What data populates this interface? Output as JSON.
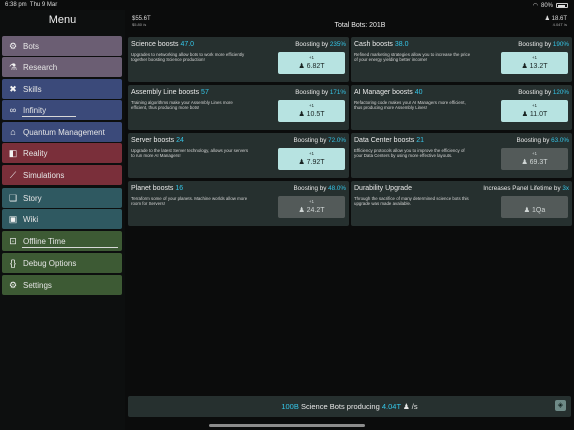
{
  "status": {
    "time": "6:38 pm",
    "date": "Thu 9 Mar",
    "battery": "80%"
  },
  "menu": {
    "title": "Menu",
    "items": [
      {
        "label": "Bots",
        "icon": "robot-icon",
        "glyph": "⚙",
        "color": "#6b5e73"
      },
      {
        "label": "Research",
        "icon": "flask-icon",
        "glyph": "⚗",
        "color": "#6b5e73"
      },
      {
        "label": "Skills",
        "icon": "skills-icon",
        "glyph": "✖",
        "color": "#3b4a7a"
      },
      {
        "label": "Infinity",
        "icon": "infinity-icon",
        "glyph": "∞",
        "color": "#3b4a7a"
      },
      {
        "label": "Quantum Management",
        "icon": "bank-icon",
        "glyph": "⌂",
        "color": "#3b4a7a"
      },
      {
        "label": "Reality",
        "icon": "reality-icon",
        "glyph": "◧",
        "color": "#7a2f3a"
      },
      {
        "label": "Simulations",
        "icon": "graph-icon",
        "glyph": "⟋",
        "color": "#7a2f3a"
      },
      {
        "label": "Story",
        "icon": "book-icon",
        "glyph": "❑",
        "color": "#2f5961"
      },
      {
        "label": "Wiki",
        "icon": "wiki-icon",
        "glyph": "▣",
        "color": "#2f5961"
      },
      {
        "label": "Offline Time",
        "icon": "offline-icon",
        "glyph": "⊡",
        "color": "#3d5a34"
      },
      {
        "label": "Debug Options",
        "icon": "debug-icon",
        "glyph": "{}",
        "color": "#3d5a34"
      },
      {
        "label": "Settings",
        "icon": "gear-icon",
        "glyph": "⚙",
        "color": "#3d5a34"
      }
    ]
  },
  "header": {
    "left_value": "$55.6T",
    "left_sub": "$5.80 /s",
    "total_bots": "Total Bots: 201B",
    "right_value": "♟ 18.6T",
    "right_sub": "4.04T /s"
  },
  "cards": [
    {
      "name": "Science boosts",
      "level": "47.0",
      "boost_label": "Boosting by",
      "boost": "235%",
      "desc": "Upgrades to networking allow bots to work more efficiently together boosting Science production!",
      "buy_small": "+1",
      "cost": "♟ 6.82T",
      "enabled": true
    },
    {
      "name": "Cash boosts",
      "level": "38.0",
      "boost_label": "Boosting by",
      "boost": "190%",
      "desc": "Refined marketing strategies allow you to increase the price of your energy yielding better income!",
      "buy_small": "+1",
      "cost": "♟ 13.2T",
      "enabled": true
    },
    {
      "name": "Assembly Line boosts",
      "level": "57",
      "boost_label": "Boosting by",
      "boost": "171%",
      "desc": "Training algorithms make your Assembly Lines more efficient, thus producing more bots!",
      "buy_small": "+1",
      "cost": "♟ 10.5T",
      "enabled": true
    },
    {
      "name": "AI Manager boosts",
      "level": "40",
      "boost_label": "Boosting by",
      "boost": "120%",
      "desc": "Refactoring code makes your AI Managers more efficient, thus producing more Assembly Lines!",
      "buy_small": "+1",
      "cost": "♟ 11.0T",
      "enabled": true
    },
    {
      "name": "Server boosts",
      "level": "24",
      "boost_label": "Boosting by",
      "boost": "72.0%",
      "desc": "Upgrade to the latest Server technology, allows your servers to run more AI Managers!",
      "buy_small": "+1",
      "cost": "♟ 7.92T",
      "enabled": true
    },
    {
      "name": "Data Center boosts",
      "level": "21",
      "boost_label": "Boosting by",
      "boost": "63.0%",
      "desc": "Efficiency protocols allow you to improve the efficiency of your Data Centers by using more effective layouts.",
      "buy_small": "+1",
      "cost": "♟ 69.3T",
      "enabled": false
    },
    {
      "name": "Planet boosts",
      "level": "16",
      "boost_label": "Boosting by",
      "boost": "48.0%",
      "desc": "Terraform some of your planets. Machine worlds allow more room for Servers!",
      "buy_small": "+1",
      "cost": "♟ 24.2T",
      "enabled": false
    },
    {
      "name": "Durability Upgrade",
      "level": "",
      "boost_label": "Increases Panel Lifetime by",
      "boost": "3x",
      "desc": "Through the sacrifice of many determined science bots this upgrade was made available.",
      "buy_small": "",
      "cost": "♟ 1Qa",
      "enabled": false
    }
  ],
  "footer": {
    "count": "100B",
    "text": "Science Bots producing",
    "rate": "4.04T",
    "suffix": "♟ /s",
    "chip_icon": "cube-icon"
  }
}
